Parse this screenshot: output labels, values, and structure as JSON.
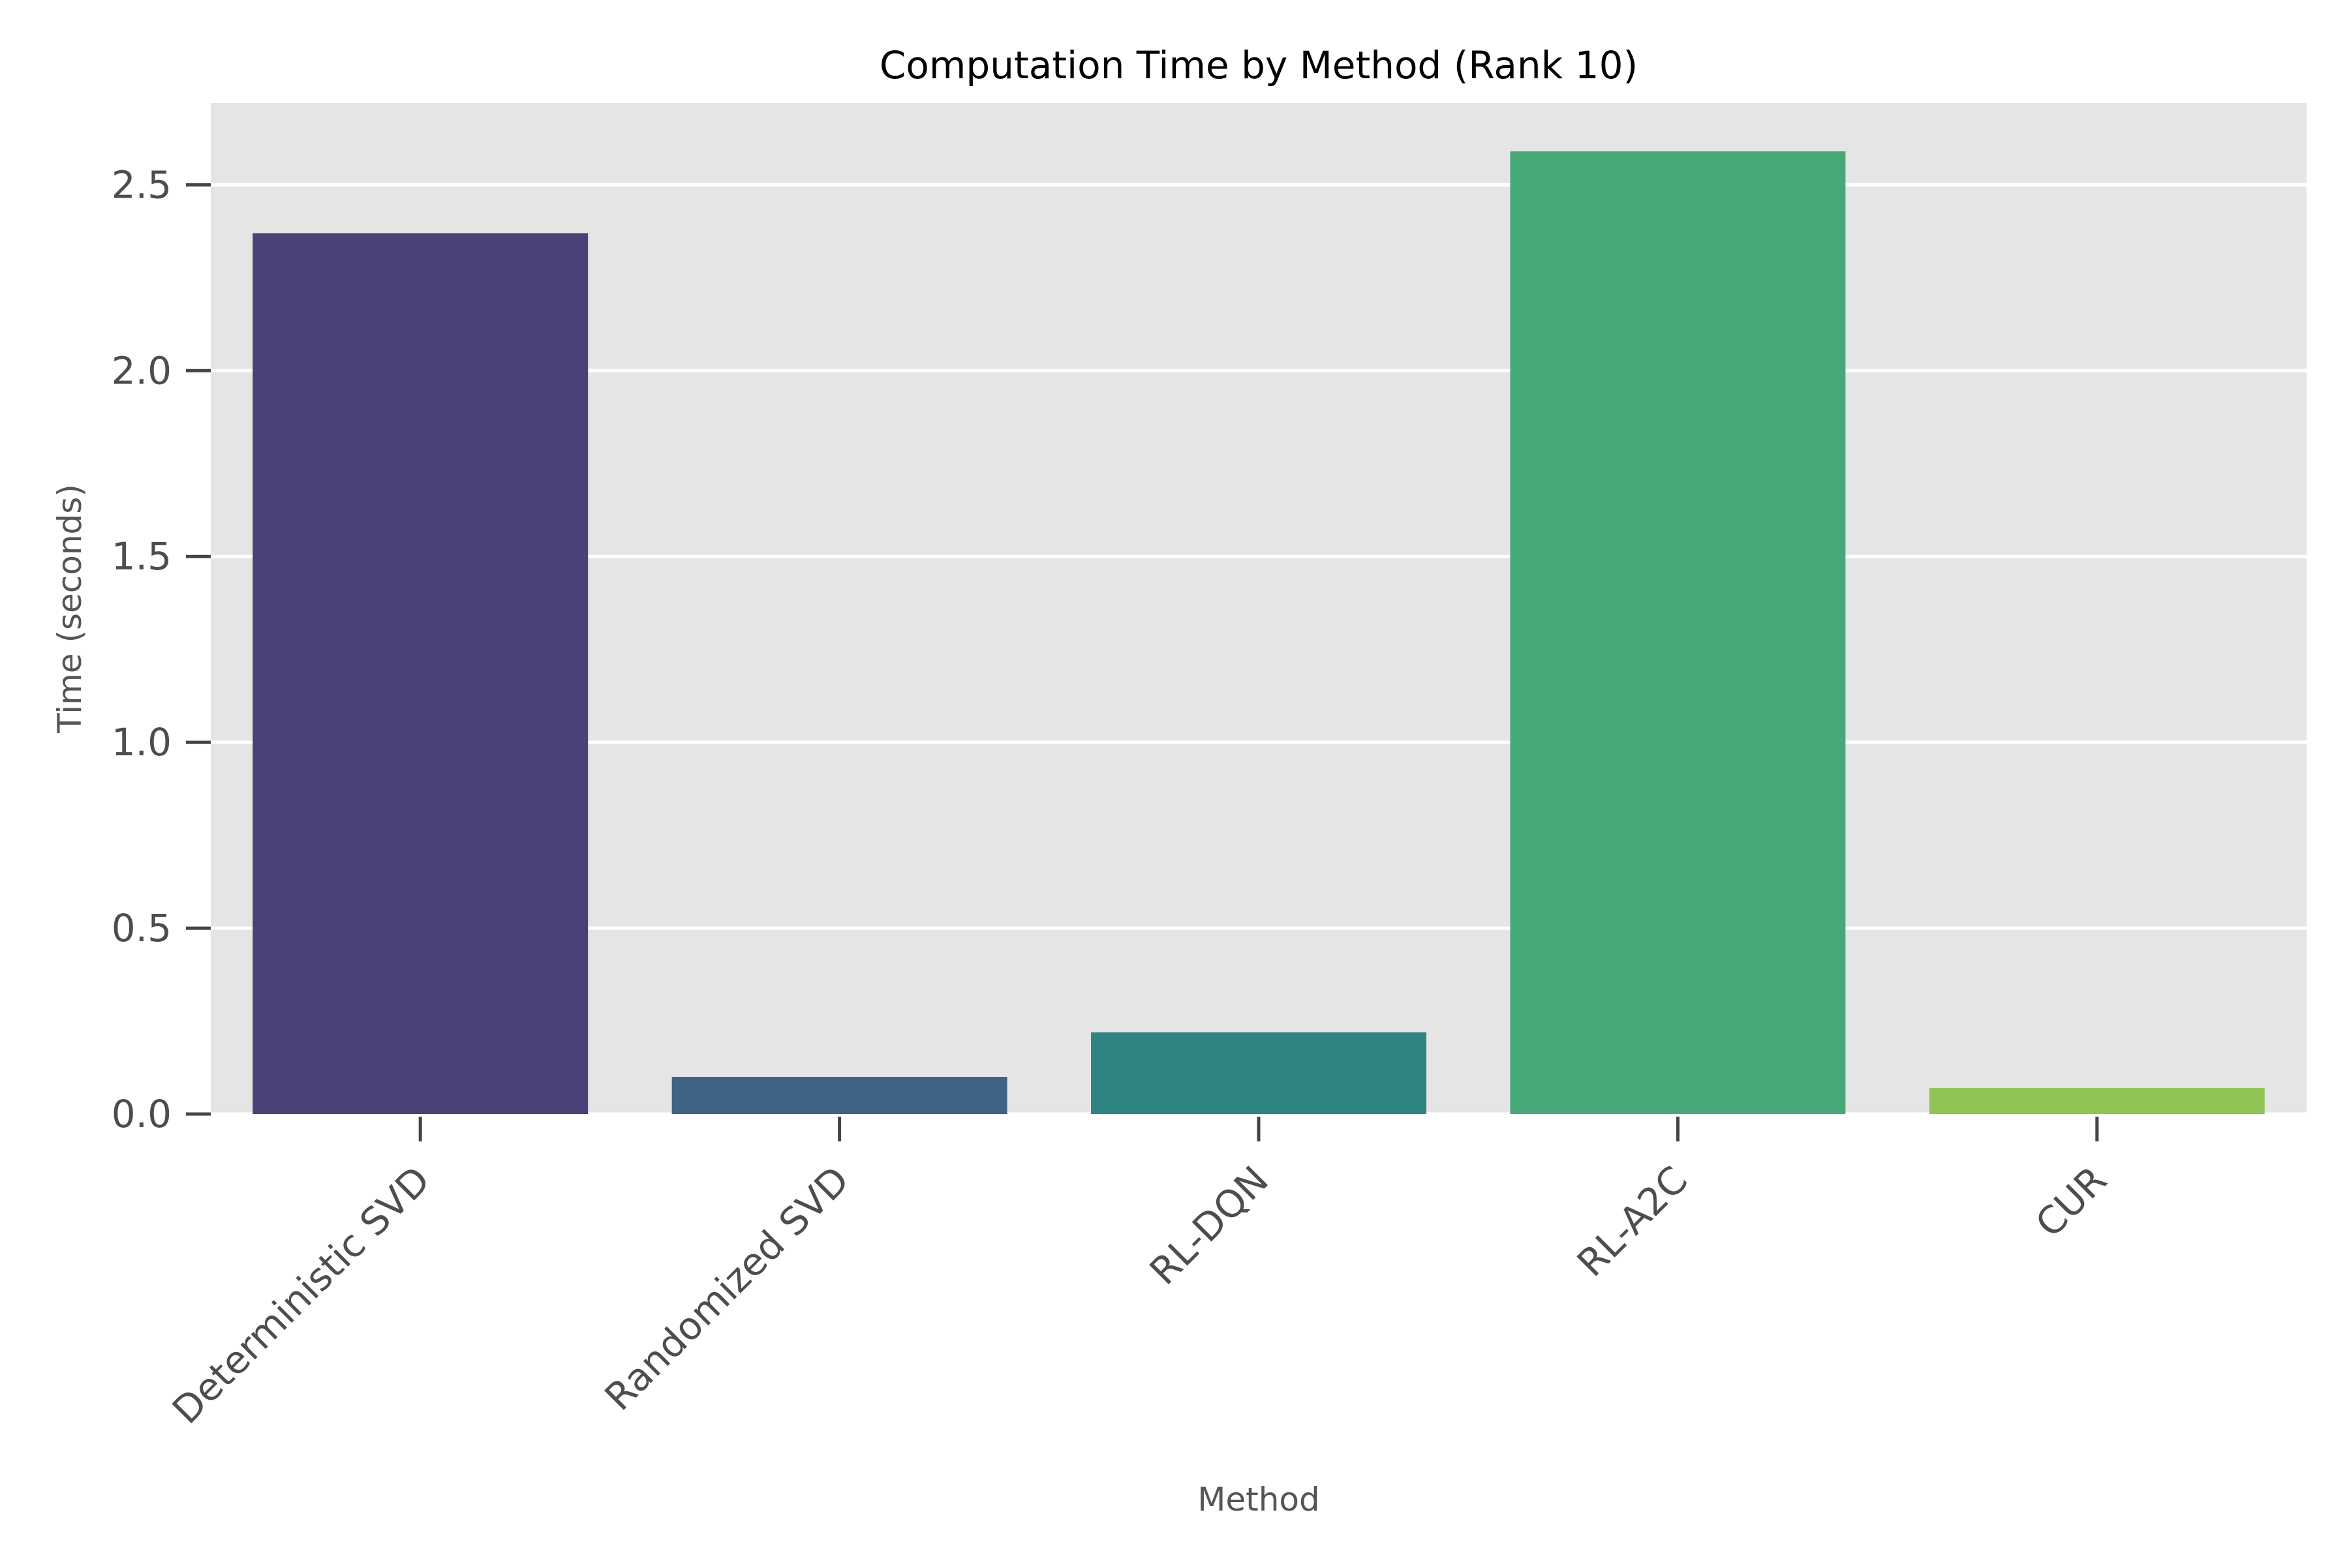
{
  "chart_data": {
    "type": "bar",
    "title": "Computation Time by Method (Rank 10)",
    "xlabel": "Method",
    "ylabel": "Time (seconds)",
    "categories": [
      "Deterministic SVD",
      "Randomized SVD",
      "RL-DQN",
      "RL-A2C",
      "CUR"
    ],
    "values": [
      2.37,
      0.1,
      0.22,
      2.59,
      0.07
    ],
    "ylim": [
      0,
      2.72
    ],
    "yticks": [
      0.0,
      0.5,
      1.0,
      1.5,
      2.0,
      2.5
    ],
    "ytick_labels": [
      "0.0",
      "0.5",
      "1.0",
      "1.5",
      "2.0",
      "2.5"
    ],
    "grid": "horizontal",
    "legend": "none",
    "colors": [
      "#4a4276",
      "#3e6385",
      "#2e8480",
      "#47a878",
      "#8fc556"
    ],
    "background": "#e5e5e5"
  }
}
